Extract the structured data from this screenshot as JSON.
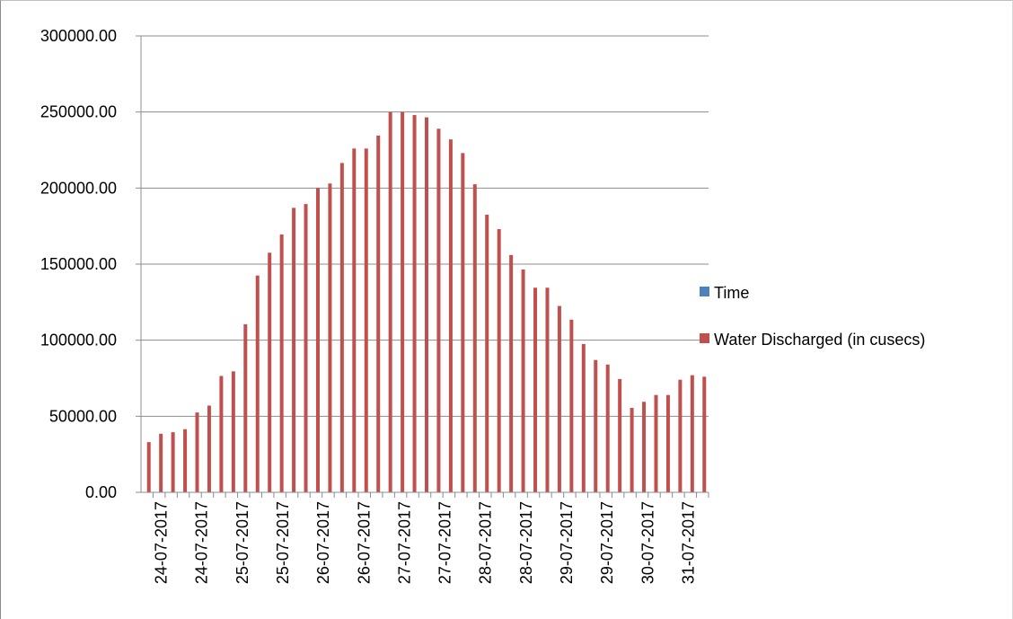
{
  "chart_data": {
    "type": "bar",
    "title": "",
    "xlabel": "",
    "ylabel": "",
    "ylim": [
      0,
      300000
    ],
    "y_ticks": [
      "0.00",
      "50000.00",
      "100000.00",
      "150000.00",
      "200000.00",
      "250000.00",
      "300000.00"
    ],
    "x_tick_labels": [
      "24-07-2017",
      "24-07-2017",
      "25-07-2017",
      "25-07-2017",
      "26-07-2017",
      "26-07-2017",
      "27-07-2017",
      "27-07-2017",
      "28-07-2017",
      "28-07-2017",
      "29-07-2017",
      "29-07-2017",
      "30-07-2017",
      "31-07-2017"
    ],
    "grid": "horizontal",
    "legend_position": "right",
    "series": [
      {
        "name": "Time",
        "color": "#4f81bd",
        "values": []
      },
      {
        "name": "Water Discharged (in cusecs)",
        "color": "#c0504d",
        "values": [
          33000,
          38500,
          39500,
          41500,
          52500,
          57000,
          76500,
          79500,
          110500,
          142500,
          157500,
          169500,
          187000,
          189500,
          200000,
          203000,
          216500,
          226000,
          226000,
          234500,
          250000,
          250000,
          248000,
          246500,
          239000,
          232000,
          223000,
          202500,
          182500,
          173000,
          156000,
          146500,
          134500,
          134500,
          122500,
          113500,
          97500,
          87000,
          84000,
          74500,
          55500,
          59500,
          64000,
          64000,
          74000,
          77000,
          76000
        ]
      }
    ]
  }
}
